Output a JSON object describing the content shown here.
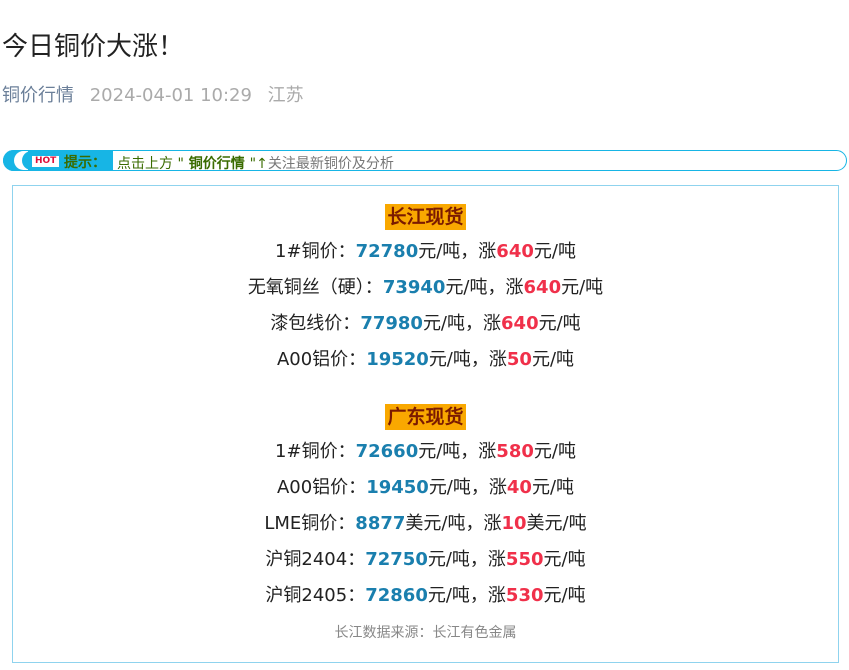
{
  "title": "今日铜价大涨！",
  "meta": {
    "category": "铜价行情",
    "datetime": "2024-04-01 10:29",
    "region": "江苏"
  },
  "hint": {
    "badge": "HOT",
    "label": "提示：",
    "pre": "点击上方 \"",
    "link": " 铜价行情 ",
    "post": "\"",
    "arrow": "↑",
    "tail": "关注最新铜价及分析"
  },
  "colors": {
    "accent": "#17b5e5",
    "price": "#1a7fae",
    "rise": "#f0304a",
    "section_bg": "#f9a800"
  },
  "sections": [
    {
      "title": "长江现货",
      "rows": [
        {
          "label": "1#铜价：",
          "price": "72780",
          "unit": "元/吨，涨",
          "rise": "640",
          "rise_unit": "元/吨"
        },
        {
          "label": "无氧铜丝（硬）：",
          "price": "73940",
          "unit": "元/吨，涨",
          "rise": "640",
          "rise_unit": "元/吨"
        },
        {
          "label": "漆包线价：",
          "price": "77980",
          "unit": "元/吨，涨",
          "rise": "640",
          "rise_unit": "元/吨"
        },
        {
          "label": "A00铝价：",
          "price": "19520",
          "unit": "元/吨，涨",
          "rise": "50",
          "rise_unit": "元/吨"
        }
      ]
    },
    {
      "title": "广东现货",
      "rows": [
        {
          "label": "1#铜价：",
          "price": "72660",
          "unit": "元/吨，涨",
          "rise": "580",
          "rise_unit": "元/吨"
        },
        {
          "label": "A00铝价：",
          "price": "19450",
          "unit": "元/吨，涨",
          "rise": "40",
          "rise_unit": "元/吨"
        },
        {
          "label": "LME铜价：",
          "price": "8877",
          "unit": "美元/吨，涨",
          "rise": "10",
          "rise_unit": "美元/吨"
        },
        {
          "label": "沪铜2404：",
          "price": "72750",
          "unit": "元/吨，涨",
          "rise": "550",
          "rise_unit": "元/吨"
        },
        {
          "label": "沪铜2405：",
          "price": "72860",
          "unit": "元/吨，涨",
          "rise": "530",
          "rise_unit": "元/吨"
        }
      ]
    }
  ],
  "source": "长江数据来源：长江有色金属"
}
